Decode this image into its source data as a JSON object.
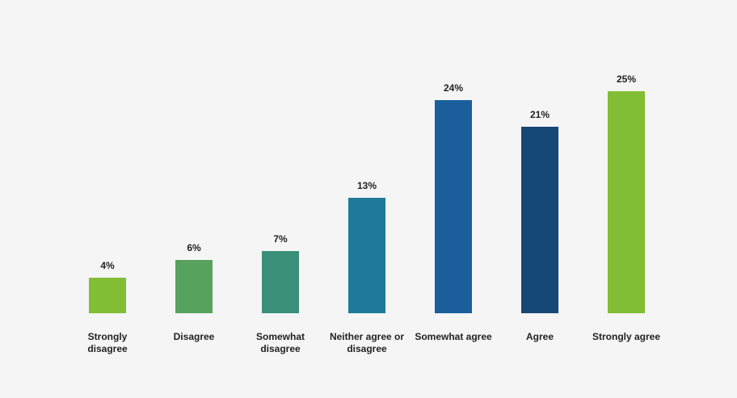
{
  "chart_data": {
    "type": "bar",
    "categories": [
      "Strongly disagree",
      "Disagree",
      "Somewhat disagree",
      "Neither agree or disagree",
      "Somewhat agree",
      "Agree",
      "Strongly agree"
    ],
    "values": [
      4,
      6,
      7,
      13,
      24,
      21,
      25
    ],
    "value_labels": [
      "4%",
      "6%",
      "7%",
      "13%",
      "24%",
      "21%",
      "25%"
    ],
    "colors": [
      "#82be35",
      "#57a35e",
      "#3a8f78",
      "#1e7a98",
      "#1a5e9c",
      "#154777",
      "#82be35"
    ]
  }
}
